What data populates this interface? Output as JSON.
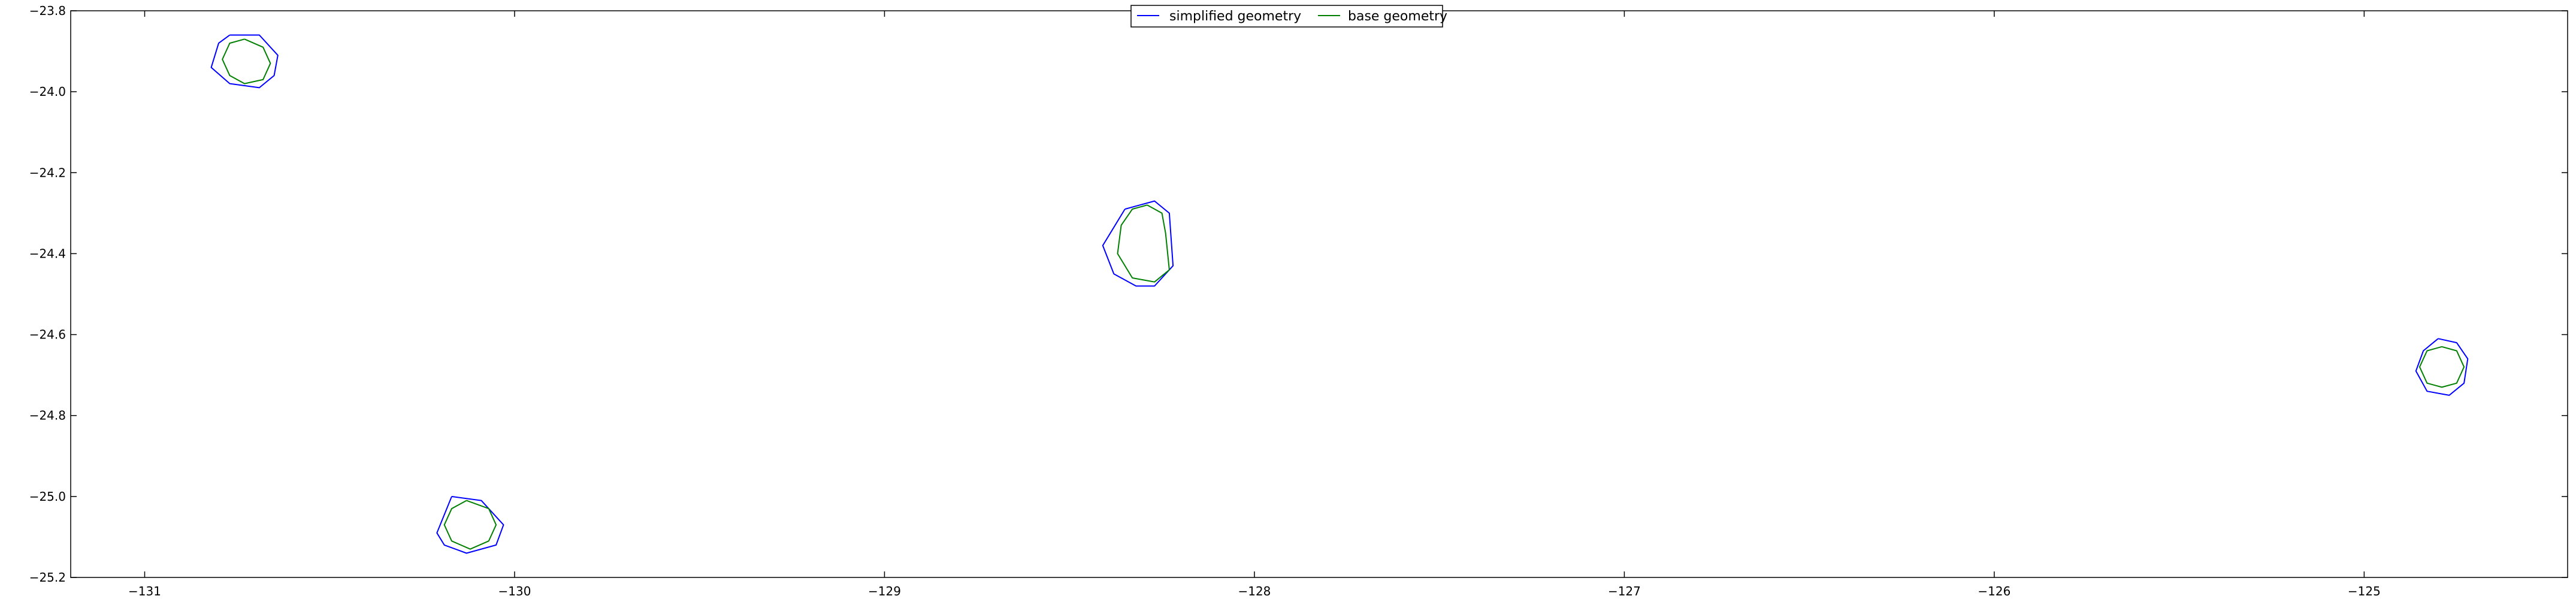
{
  "chart_data": {
    "type": "line",
    "title": "",
    "xlabel": "",
    "ylabel": "",
    "xlim": [
      -131.2,
      -124.45
    ],
    "ylim": [
      -25.2,
      -23.8
    ],
    "grid": false,
    "legend_position": "top-center",
    "xticks": [
      -131,
      -130,
      -129,
      -128,
      -127,
      -126,
      -125
    ],
    "xtick_labels": [
      "−131",
      "−130",
      "−129",
      "−128",
      "−127",
      "−126",
      "−125"
    ],
    "yticks": [
      -23.8,
      -24.0,
      -24.2,
      -24.4,
      -24.6,
      -24.8,
      -25.0,
      -25.2
    ],
    "ytick_labels": [
      "−23.8",
      "−24.0",
      "−24.2",
      "−24.4",
      "−24.6",
      "−24.8",
      "−25.0",
      "−25.2"
    ],
    "series": [
      {
        "name": "simplified geometry",
        "color": "#0000ff",
        "polygons": [
          [
            [
              -130.77,
              -23.86
            ],
            [
              -130.69,
              -23.86
            ],
            [
              -130.64,
              -23.91
            ],
            [
              -130.65,
              -23.96
            ],
            [
              -130.69,
              -23.99
            ],
            [
              -130.77,
              -23.98
            ],
            [
              -130.82,
              -23.94
            ],
            [
              -130.8,
              -23.88
            ],
            [
              -130.77,
              -23.86
            ]
          ],
          [
            [
              -130.17,
              -25.0
            ],
            [
              -130.09,
              -25.01
            ],
            [
              -130.03,
              -25.07
            ],
            [
              -130.05,
              -25.12
            ],
            [
              -130.13,
              -25.14
            ],
            [
              -130.19,
              -25.12
            ],
            [
              -130.21,
              -25.09
            ],
            [
              -130.17,
              -25.0
            ]
          ],
          [
            [
              -128.35,
              -24.29
            ],
            [
              -128.27,
              -24.27
            ],
            [
              -128.23,
              -24.3
            ],
            [
              -128.22,
              -24.43
            ],
            [
              -128.27,
              -24.48
            ],
            [
              -128.32,
              -24.48
            ],
            [
              -128.38,
              -24.45
            ],
            [
              -128.41,
              -24.38
            ],
            [
              -128.35,
              -24.29
            ]
          ],
          [
            [
              -124.8,
              -24.61
            ],
            [
              -124.75,
              -24.62
            ],
            [
              -124.72,
              -24.66
            ],
            [
              -124.73,
              -24.72
            ],
            [
              -124.77,
              -24.75
            ],
            [
              -124.83,
              -24.74
            ],
            [
              -124.86,
              -24.69
            ],
            [
              -124.84,
              -24.64
            ],
            [
              -124.8,
              -24.61
            ]
          ]
        ]
      },
      {
        "name": "base geometry",
        "color": "#008000",
        "polygons": [
          [
            [
              -130.73,
              -23.87
            ],
            [
              -130.68,
              -23.89
            ],
            [
              -130.66,
              -23.93
            ],
            [
              -130.68,
              -23.97
            ],
            [
              -130.73,
              -23.98
            ],
            [
              -130.77,
              -23.96
            ],
            [
              -130.79,
              -23.92
            ],
            [
              -130.77,
              -23.88
            ],
            [
              -130.73,
              -23.87
            ]
          ],
          [
            [
              -130.13,
              -25.01
            ],
            [
              -130.07,
              -25.03
            ],
            [
              -130.05,
              -25.07
            ],
            [
              -130.07,
              -25.11
            ],
            [
              -130.12,
              -25.13
            ],
            [
              -130.17,
              -25.11
            ],
            [
              -130.19,
              -25.07
            ],
            [
              -130.17,
              -25.03
            ],
            [
              -130.13,
              -25.01
            ]
          ],
          [
            [
              -128.29,
              -24.28
            ],
            [
              -128.25,
              -24.3
            ],
            [
              -128.24,
              -24.35
            ],
            [
              -128.23,
              -24.44
            ],
            [
              -128.27,
              -24.47
            ],
            [
              -128.33,
              -24.46
            ],
            [
              -128.37,
              -24.4
            ],
            [
              -128.36,
              -24.33
            ],
            [
              -128.33,
              -24.29
            ],
            [
              -128.29,
              -24.28
            ]
          ],
          [
            [
              -124.79,
              -24.63
            ],
            [
              -124.75,
              -24.64
            ],
            [
              -124.73,
              -24.68
            ],
            [
              -124.75,
              -24.72
            ],
            [
              -124.79,
              -24.73
            ],
            [
              -124.83,
              -24.72
            ],
            [
              -124.85,
              -24.68
            ],
            [
              -124.83,
              -24.64
            ],
            [
              -124.79,
              -24.63
            ]
          ]
        ]
      }
    ]
  }
}
